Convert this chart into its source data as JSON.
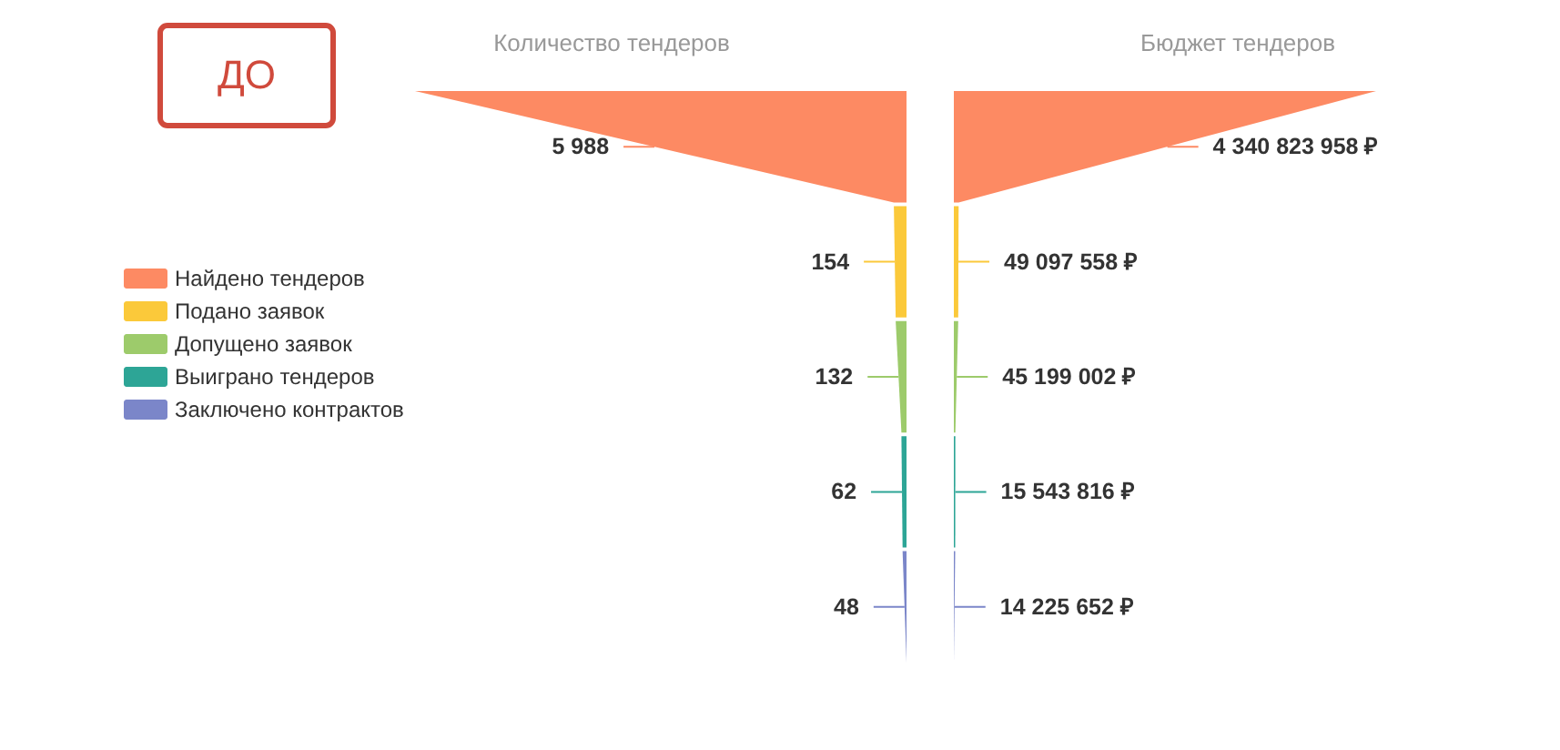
{
  "chart_data": {
    "type": "other",
    "categories": [
      "Количество тендеров",
      "Бюджет тендеров"
    ],
    "series": [
      {
        "name": "Найдено тендеров",
        "color": "#fd8a63",
        "values": [
          5988,
          4340823958
        ],
        "value_labels": [
          "5 988",
          "4 340 823 958 ₽"
        ]
      },
      {
        "name": "Подано заявок",
        "color": "#fbc93a",
        "values": [
          154,
          49097558
        ],
        "value_labels": [
          "154",
          "49 097 558 ₽"
        ]
      },
      {
        "name": "Допущено заявок",
        "color": "#9dcb6b",
        "values": [
          132,
          45199002
        ],
        "value_labels": [
          "132",
          "45 199 002 ₽"
        ]
      },
      {
        "name": "Выиграно тендеров",
        "color": "#2da596",
        "values": [
          62,
          15543816
        ],
        "value_labels": [
          "62",
          "15 543 816 ₽"
        ]
      },
      {
        "name": "Заключено контрактов",
        "color": "#7b86c9",
        "values": [
          48,
          14225652
        ],
        "value_labels": [
          "48",
          "14 225 652 ₽"
        ]
      }
    ],
    "legend": "left",
    "annotations": [
      "ДО"
    ]
  }
}
